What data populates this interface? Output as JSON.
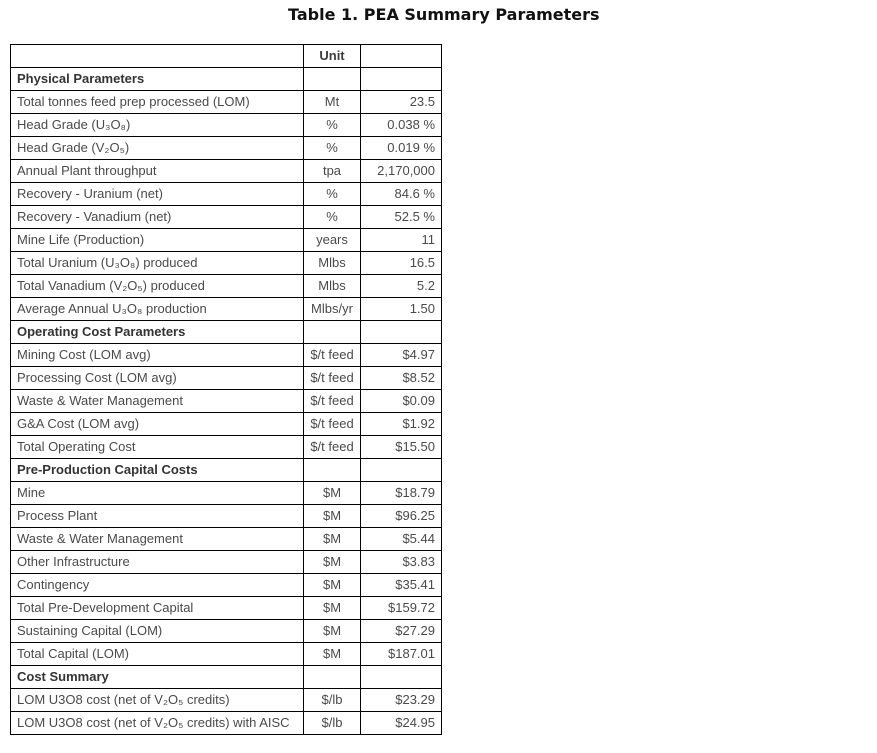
{
  "title": "Table 1. PEA Summary Parameters",
  "table": {
    "columns": [
      "",
      "Unit",
      ""
    ],
    "rows": [
      {
        "type": "section",
        "label": "Physical Parameters",
        "unit": "",
        "value": ""
      },
      {
        "type": "data",
        "label": "Total tonnes feed prep processed (LOM)",
        "unit": "Mt",
        "value": "23.5"
      },
      {
        "type": "data",
        "label": "Head Grade (U₃O₈)",
        "unit": "%",
        "value": "0.038 %"
      },
      {
        "type": "data",
        "label": "Head Grade (V₂O₅)",
        "unit": "%",
        "value": "0.019 %"
      },
      {
        "type": "data",
        "label": "Annual Plant throughput",
        "unit": "tpa",
        "value": "2,170,000"
      },
      {
        "type": "data",
        "label": "Recovery - Uranium (net)",
        "unit": "%",
        "value": "84.6 %"
      },
      {
        "type": "data",
        "label": "Recovery - Vanadium (net)",
        "unit": "%",
        "value": "52.5 %"
      },
      {
        "type": "data",
        "label": "Mine Life (Production)",
        "unit": "years",
        "value": "11"
      },
      {
        "type": "data",
        "label": "Total Uranium (U₃O₈) produced",
        "unit": "Mlbs",
        "value": "16.5"
      },
      {
        "type": "data",
        "label": "Total Vanadium (V₂O₅) produced",
        "unit": "Mlbs",
        "value": "5.2"
      },
      {
        "type": "data",
        "label": "Average Annual U₃O₈ production",
        "unit": "Mlbs/yr",
        "value": "1.50"
      },
      {
        "type": "section",
        "label": "Operating Cost Parameters",
        "unit": "",
        "value": ""
      },
      {
        "type": "data",
        "label": "Mining Cost (LOM avg)",
        "unit": "$/t feed",
        "value": "$4.97"
      },
      {
        "type": "data",
        "label": "Processing Cost (LOM avg)",
        "unit": "$/t feed",
        "value": "$8.52"
      },
      {
        "type": "data",
        "label": "Waste & Water Management",
        "unit": "$/t feed",
        "value": "$0.09"
      },
      {
        "type": "data",
        "label": "G&A Cost (LOM avg)",
        "unit": "$/t feed",
        "value": "$1.92",
        "value_underline": "double"
      },
      {
        "type": "data",
        "label": "Total Operating Cost",
        "unit": "$/t feed",
        "value": "$15.50"
      },
      {
        "type": "section",
        "label": "Pre-Production Capital Costs",
        "unit": "",
        "value": ""
      },
      {
        "type": "data",
        "label": "Mine",
        "unit": "$M",
        "value": "$18.79"
      },
      {
        "type": "data",
        "label": "Process Plant",
        "unit": "$M",
        "value": "$96.25"
      },
      {
        "type": "data",
        "label": "Waste & Water Management",
        "unit": "$M",
        "value": "$5.44"
      },
      {
        "type": "data",
        "label": "Other Infrastructure",
        "unit": "$M",
        "value": "$3.83"
      },
      {
        "type": "data",
        "label": "Contingency",
        "unit": "$M",
        "value": "$35.41"
      },
      {
        "type": "data",
        "label": "Total Pre-Development Capital",
        "unit": "$M",
        "value": "$159.72"
      },
      {
        "type": "data",
        "label": "Sustaining Capital (LOM)",
        "unit": "$M",
        "value": "$27.29",
        "value_underline": "double"
      },
      {
        "type": "data",
        "label": "Total Capital (LOM)",
        "unit": "$M",
        "value": "$187.01"
      },
      {
        "type": "section",
        "label": "Cost Summary",
        "unit": "",
        "value": ""
      },
      {
        "type": "data",
        "label": "LOM U3O8 cost (net of V₂O₅ credits)",
        "unit": "$/lb",
        "value": "$23.29"
      },
      {
        "type": "data",
        "label": "LOM U3O8 cost (net of V₂O₅ credits) with AISC",
        "unit": "$/lb",
        "value": "$24.95"
      }
    ]
  },
  "colors": {
    "background": "#ffffff",
    "border": "#000000",
    "text": "#4a4a4a",
    "title_text": "#111111"
  }
}
